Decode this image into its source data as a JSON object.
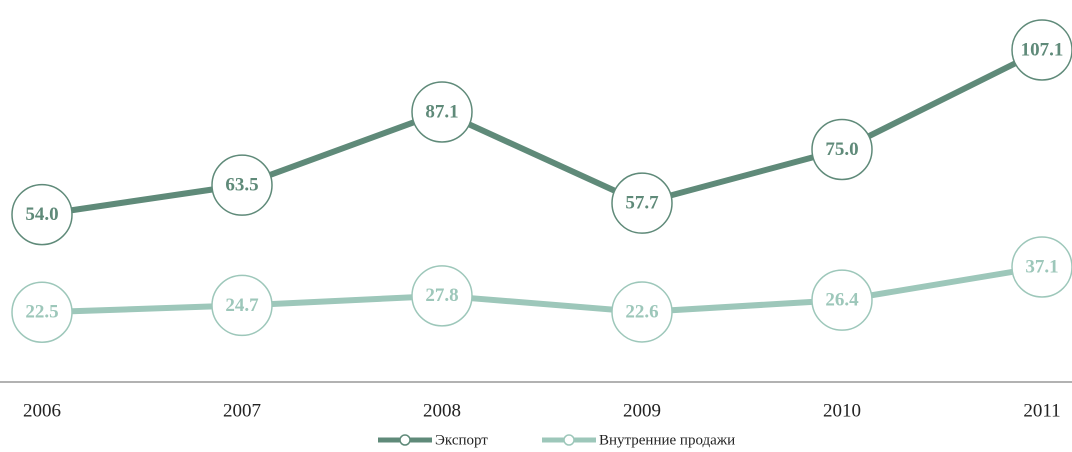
{
  "chart_data": {
    "type": "line",
    "categories": [
      "2006",
      "2007",
      "2008",
      "2009",
      "2010",
      "2011"
    ],
    "series": [
      {
        "name": "Экспорт",
        "color": "#5f8a79",
        "values": [
          54.0,
          63.5,
          87.1,
          57.7,
          75.0,
          107.1
        ],
        "value_labels": [
          "54.0",
          "63.5",
          "87.1",
          "57.7",
          "75.0",
          "107.1"
        ]
      },
      {
        "name": "Внутренние продажи",
        "color": "#9dc7ba",
        "values": [
          22.5,
          24.7,
          27.8,
          22.6,
          26.4,
          37.1
        ],
        "value_labels": [
          "22.5",
          "24.7",
          "27.8",
          "22.6",
          "26.4",
          "37.1"
        ]
      }
    ],
    "ylim": [
      0,
      120
    ]
  }
}
